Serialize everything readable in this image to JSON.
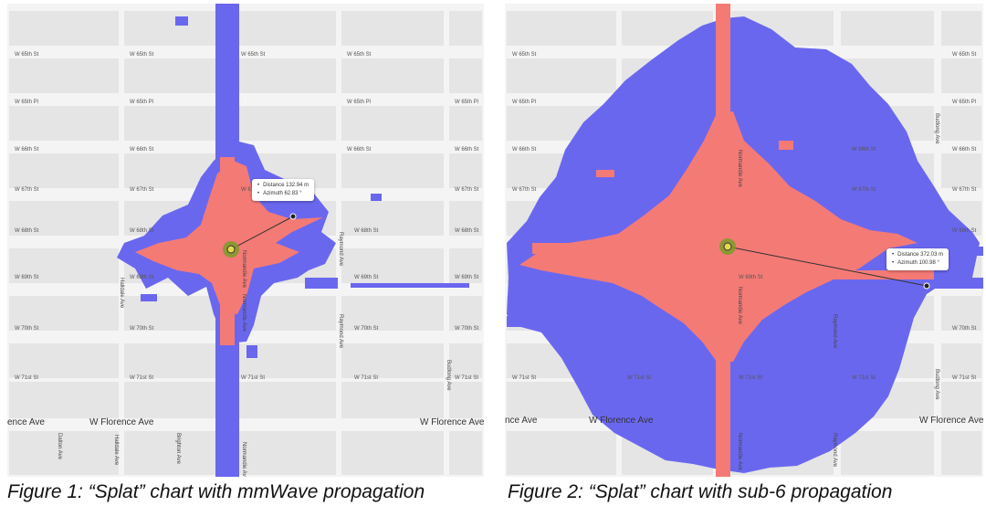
{
  "figure_1": {
    "caption": "Figure 1: “Splat” chart with mmWave propagation",
    "streets": [
      "W 65th St",
      "W 65th Pl",
      "W 66th St",
      "W 67th St",
      "W 68th St",
      "W 69th St",
      "W 70th St",
      "W 71st St"
    ],
    "avenue": "W Florence Ave",
    "avenue_left": "ence Ave",
    "vertical_streets": [
      "Normandie Ave",
      "Raymond Ave",
      "Halldale Ave",
      "Brighton Ave",
      "Budlong Ave",
      "Dalton Ave"
    ],
    "callout": {
      "distance": "Distance 132.94 m",
      "azimuth": "Azimuth 62.83 °"
    }
  },
  "figure_2": {
    "caption": "Figure 2: “Splat” chart with sub-6 propagation",
    "streets": [
      "W 65th St",
      "W 65th Pl",
      "W 66th St",
      "W 67th St",
      "W 68th St",
      "W 69th St",
      "W 70th St",
      "W 71st St"
    ],
    "avenue": "W Florence Ave",
    "avenue_left": "nce Ave",
    "vertical_streets": [
      "Normandie Ave",
      "Raymond Ave",
      "Budlong Ave"
    ],
    "callout": {
      "distance": "Distance 372.03 m",
      "azimuth": "Azimuth 100.98 °"
    }
  },
  "colors": {
    "coverage_strong": "#f47a76",
    "coverage_weak": "#6a67ef",
    "map_bg": "#f4f4f4",
    "block": "#e4e4e4",
    "site": "#7a9e2a"
  }
}
